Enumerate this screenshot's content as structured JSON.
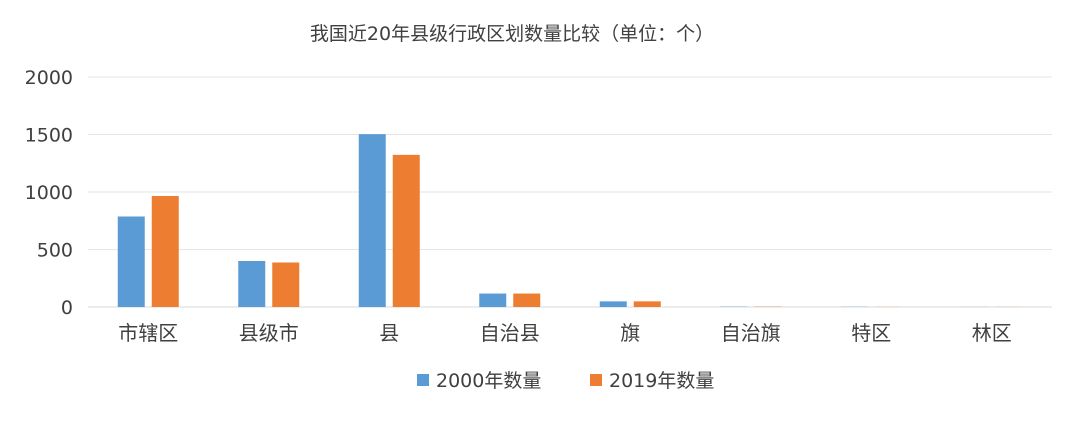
{
  "chart_data": {
    "type": "bar",
    "title": "我国近20年县级行政区划数量比较（单位：个）",
    "categories": [
      "市辖区",
      "县级市",
      "县",
      "自治县",
      "旗",
      "自治旗",
      "特区",
      "林区"
    ],
    "series": [
      {
        "name": "2000年数量",
        "color": "#5b9bd5",
        "values": [
          787,
          400,
          1503,
          117,
          49,
          3,
          2,
          1
        ]
      },
      {
        "name": "2019年数量",
        "color": "#ed7d31",
        "values": [
          965,
          387,
          1323,
          117,
          49,
          3,
          1,
          1
        ]
      }
    ],
    "yticks": [
      0,
      500,
      1000,
      1500,
      2000
    ],
    "ylim": [
      0,
      2000
    ],
    "grid": true,
    "legend_position": "bottom"
  }
}
